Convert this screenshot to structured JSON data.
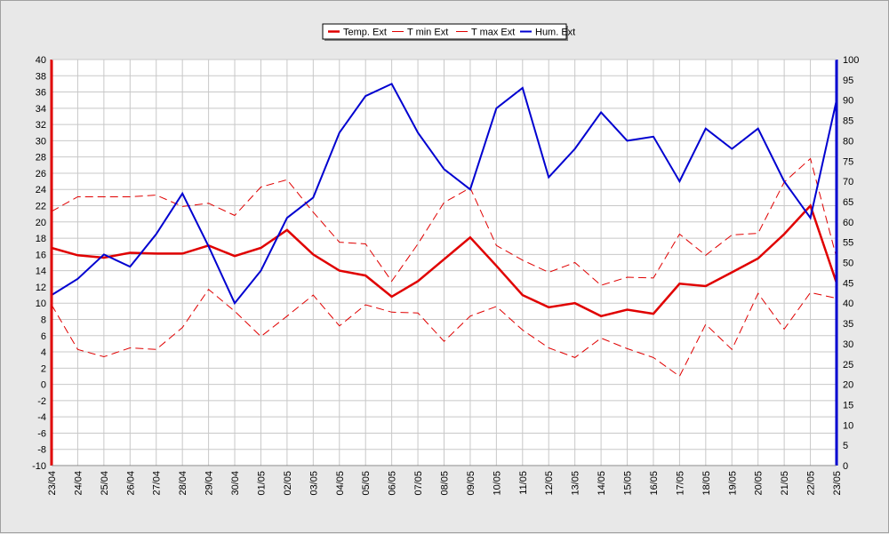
{
  "chart_data": {
    "type": "line",
    "title": "",
    "categories": [
      "23/04",
      "24/04",
      "25/04",
      "26/04",
      "27/04",
      "28/04",
      "29/04",
      "30/04",
      "01/05",
      "02/05",
      "03/05",
      "04/05",
      "05/05",
      "06/05",
      "07/05",
      "08/05",
      "09/05",
      "10/05",
      "11/05",
      "12/05",
      "13/05",
      "14/05",
      "15/05",
      "16/05",
      "17/05",
      "18/05",
      "19/05",
      "20/05",
      "21/05",
      "22/05",
      "23/05"
    ],
    "y_left": {
      "ylim": [
        -10,
        40
      ],
      "ticks": [
        40,
        38,
        36,
        34,
        32,
        30,
        28,
        26,
        24,
        22,
        20,
        18,
        16,
        14,
        12,
        10,
        8,
        6,
        4,
        2,
        0,
        -2,
        -4,
        -6,
        -8,
        -10
      ]
    },
    "y_right": {
      "ylim": [
        0,
        100
      ],
      "ticks": [
        100,
        95,
        90,
        85,
        80,
        75,
        70,
        65,
        60,
        55,
        50,
        45,
        40,
        35,
        30,
        25,
        20,
        15,
        10,
        5,
        0
      ]
    },
    "grid": true,
    "legend_position": "top-center",
    "series": [
      {
        "name": "Temp. Ext",
        "axis": "left",
        "color": "#e00000",
        "style": "solid-thick",
        "values": [
          16.8,
          15.9,
          15.6,
          16.2,
          16.1,
          16.1,
          17.1,
          15.8,
          16.8,
          19.0,
          16.0,
          14.0,
          13.4,
          10.8,
          12.7,
          15.4,
          18.1,
          14.6,
          11.0,
          9.5,
          10.0,
          8.4,
          9.2,
          8.7,
          12.4,
          12.1,
          13.8,
          15.5,
          18.5,
          22.0,
          12.5
        ]
      },
      {
        "name": "T min Ext",
        "axis": "left",
        "color": "#e00000",
        "style": "dashed",
        "values": [
          9.8,
          4.3,
          3.4,
          4.5,
          4.3,
          7.0,
          11.7,
          9.0,
          5.9,
          8.4,
          11.0,
          7.2,
          9.8,
          8.9,
          8.8,
          5.3,
          8.4,
          9.6,
          6.7,
          4.5,
          3.3,
          5.7,
          4.4,
          3.3,
          1.0,
          7.4,
          4.3,
          11.2,
          6.8,
          11.3,
          10.6
        ]
      },
      {
        "name": "T max Ext",
        "axis": "left",
        "color": "#e00000",
        "style": "dashed",
        "values": [
          21.3,
          23.1,
          23.1,
          23.1,
          23.3,
          21.9,
          22.3,
          20.8,
          24.3,
          25.2,
          21.2,
          17.5,
          17.3,
          12.7,
          17.3,
          22.4,
          24.2,
          17.1,
          15.3,
          13.8,
          15.0,
          12.2,
          13.2,
          13.1,
          18.5,
          15.9,
          18.4,
          18.6,
          24.9,
          27.8,
          15.6
        ]
      },
      {
        "name": "Hum. Ext",
        "axis": "right",
        "color": "#0000d0",
        "style": "solid",
        "values": [
          42,
          46,
          52,
          49,
          57,
          67,
          54,
          40,
          48,
          61,
          66,
          82,
          91,
          94,
          82,
          73,
          68,
          88,
          93,
          71,
          78,
          87,
          80,
          81,
          70,
          83,
          78,
          83,
          70,
          61,
          90
        ]
      }
    ]
  }
}
